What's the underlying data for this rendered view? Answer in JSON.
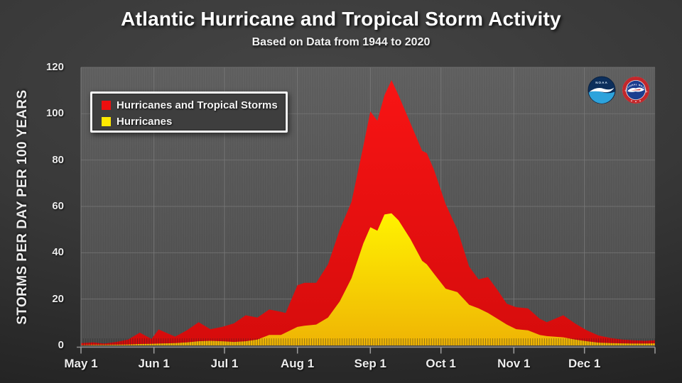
{
  "page": {
    "title": "Atlantic Hurricane and Tropical Storm Activity",
    "subtitle": "Based on Data from 1944 to 2020"
  },
  "colors": {
    "total_storms_red": "#ee0f0f",
    "hurricanes_yellow": "#ffe800",
    "plot_background": "#555555",
    "page_background": "#333333",
    "gridline": "#6f6f6f",
    "text": "#ededed"
  },
  "legend": {
    "items": [
      {
        "label": "Hurricanes and Tropical Storms",
        "color": "#ee0f0f"
      },
      {
        "label": "Hurricanes",
        "color": "#ffe800"
      }
    ]
  },
  "logos": {
    "noaa": {
      "label": "NOAA"
    },
    "nws": {
      "ring_text": "NATIONAL WEATHER SERVICE"
    }
  },
  "chart_data": {
    "type": "area",
    "title": "Atlantic Hurricane and Tropical Storm Activity",
    "subtitle": "Based on Data from 1944 to 2020",
    "xlabel": "",
    "ylabel": "STORMS PER DAY PER 100 YEARS",
    "ylim": [
      0,
      120
    ],
    "y_ticks": [
      0,
      20,
      40,
      60,
      80,
      100,
      120
    ],
    "x_unit": "days after May 1",
    "x_range": [
      0,
      244
    ],
    "x_ticks": [
      {
        "day": 0,
        "label": "May 1"
      },
      {
        "day": 31,
        "label": "Jun 1"
      },
      {
        "day": 61,
        "label": "Jul 1"
      },
      {
        "day": 92,
        "label": "Aug 1"
      },
      {
        "day": 123,
        "label": "Sep 1"
      },
      {
        "day": 153,
        "label": "Oct 1"
      },
      {
        "day": 184,
        "label": "Nov 1"
      },
      {
        "day": 214,
        "label": "Dec 1"
      }
    ],
    "legend_position": "upper-left",
    "grid": true,
    "x": [
      0,
      5,
      10,
      15,
      20,
      25,
      30,
      33,
      40,
      45,
      50,
      55,
      60,
      65,
      70,
      75,
      80,
      85,
      87,
      92,
      95,
      100,
      105,
      110,
      115,
      120,
      123,
      126,
      129,
      132,
      135,
      140,
      145,
      147,
      150,
      155,
      160,
      165,
      169,
      173,
      177,
      181,
      185,
      190,
      195,
      198,
      205,
      210,
      215,
      220,
      225,
      230,
      235,
      240,
      244
    ],
    "series": [
      {
        "name": "Hurricanes and Tropical Storms",
        "color": "#ee0f0f",
        "color_top": "#f81414",
        "color_bottom": "#d60c0c",
        "values": [
          1.0,
          1.3,
          0.8,
          1.5,
          2.5,
          5.5,
          2.8,
          6.9,
          3.8,
          6.5,
          10,
          7,
          8,
          9.5,
          13,
          12,
          15.5,
          14.5,
          14,
          26,
          27,
          27,
          35,
          50,
          62,
          86,
          101,
          97,
          108,
          114.5,
          108,
          96,
          84,
          83,
          76,
          61,
          50,
          34,
          28.5,
          29.5,
          24,
          18,
          16.5,
          16,
          11.5,
          10,
          13,
          9.5,
          6.5,
          4.3,
          3.2,
          2.5,
          2.2,
          2.0,
          2.2
        ]
      },
      {
        "name": "Hurricanes",
        "color": "#ffe800",
        "color_top": "#fff200",
        "color_bottom": "#efb405",
        "values": [
          0.1,
          0.2,
          0.2,
          0.3,
          0.4,
          0.6,
          0.7,
          0.8,
          1.0,
          1.3,
          1.8,
          2.0,
          1.8,
          1.5,
          1.8,
          2.5,
          4.5,
          4.5,
          5.5,
          8,
          8.5,
          9,
          12,
          19,
          29,
          44,
          51,
          49.5,
          56.5,
          57,
          54,
          46,
          36.5,
          35,
          31,
          24.5,
          23,
          17.5,
          16,
          14,
          11.5,
          9,
          7,
          6.5,
          4.5,
          4,
          3.5,
          2.5,
          1.8,
          1.2,
          1.0,
          0.9,
          0.8,
          0.8,
          0.9
        ]
      }
    ],
    "annotations": {
      "peak_total": {
        "date": "Sep 10",
        "value": 114.5
      },
      "peak_hurricanes": {
        "date": "Sep 10",
        "value": 57
      }
    }
  }
}
